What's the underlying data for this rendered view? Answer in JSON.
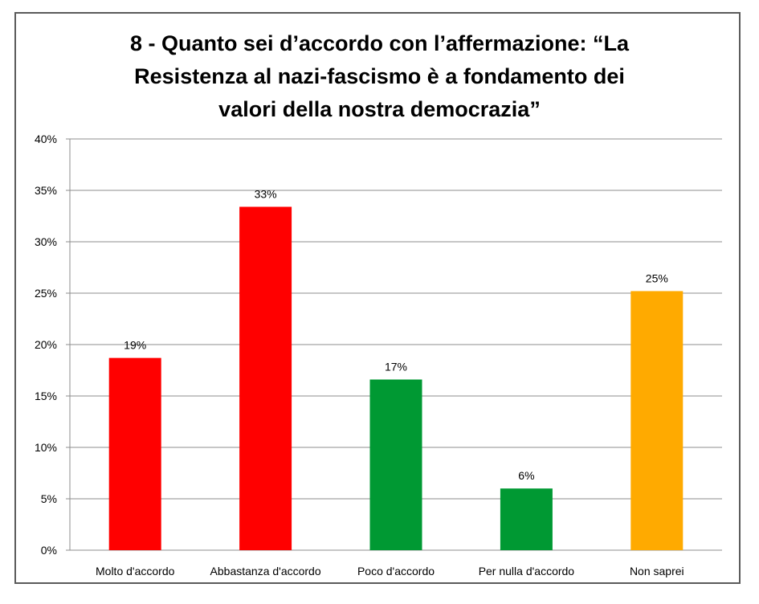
{
  "chart_data": {
    "type": "bar",
    "title": "8 - Quanto sei d’accordo con l’affermazione: “La\nResistenza al nazi-fascismo è a fondamento dei\nvalori della nostra democrazia”",
    "categories": [
      "Molto d'accordo",
      "Abbastanza d'accordo",
      "Poco d'accordo",
      "Per nulla d'accordo",
      "Non saprei"
    ],
    "values": [
      18.7,
      33.4,
      16.6,
      6.0,
      25.2
    ],
    "data_labels": [
      "19%",
      "33%",
      "17%",
      "6%",
      "25%"
    ],
    "bar_colors": [
      "#ff0000",
      "#ff0000",
      "#009933",
      "#009933",
      "#ffaa00"
    ],
    "ylim": [
      0,
      40
    ],
    "yticks": [
      0,
      5,
      10,
      15,
      20,
      25,
      30,
      35,
      40
    ],
    "ytick_labels": [
      "0%",
      "5%",
      "10%",
      "15%",
      "20%",
      "25%",
      "30%",
      "35%",
      "40%"
    ],
    "xlabel": "",
    "ylabel": "",
    "grid": true,
    "legend": "none"
  }
}
